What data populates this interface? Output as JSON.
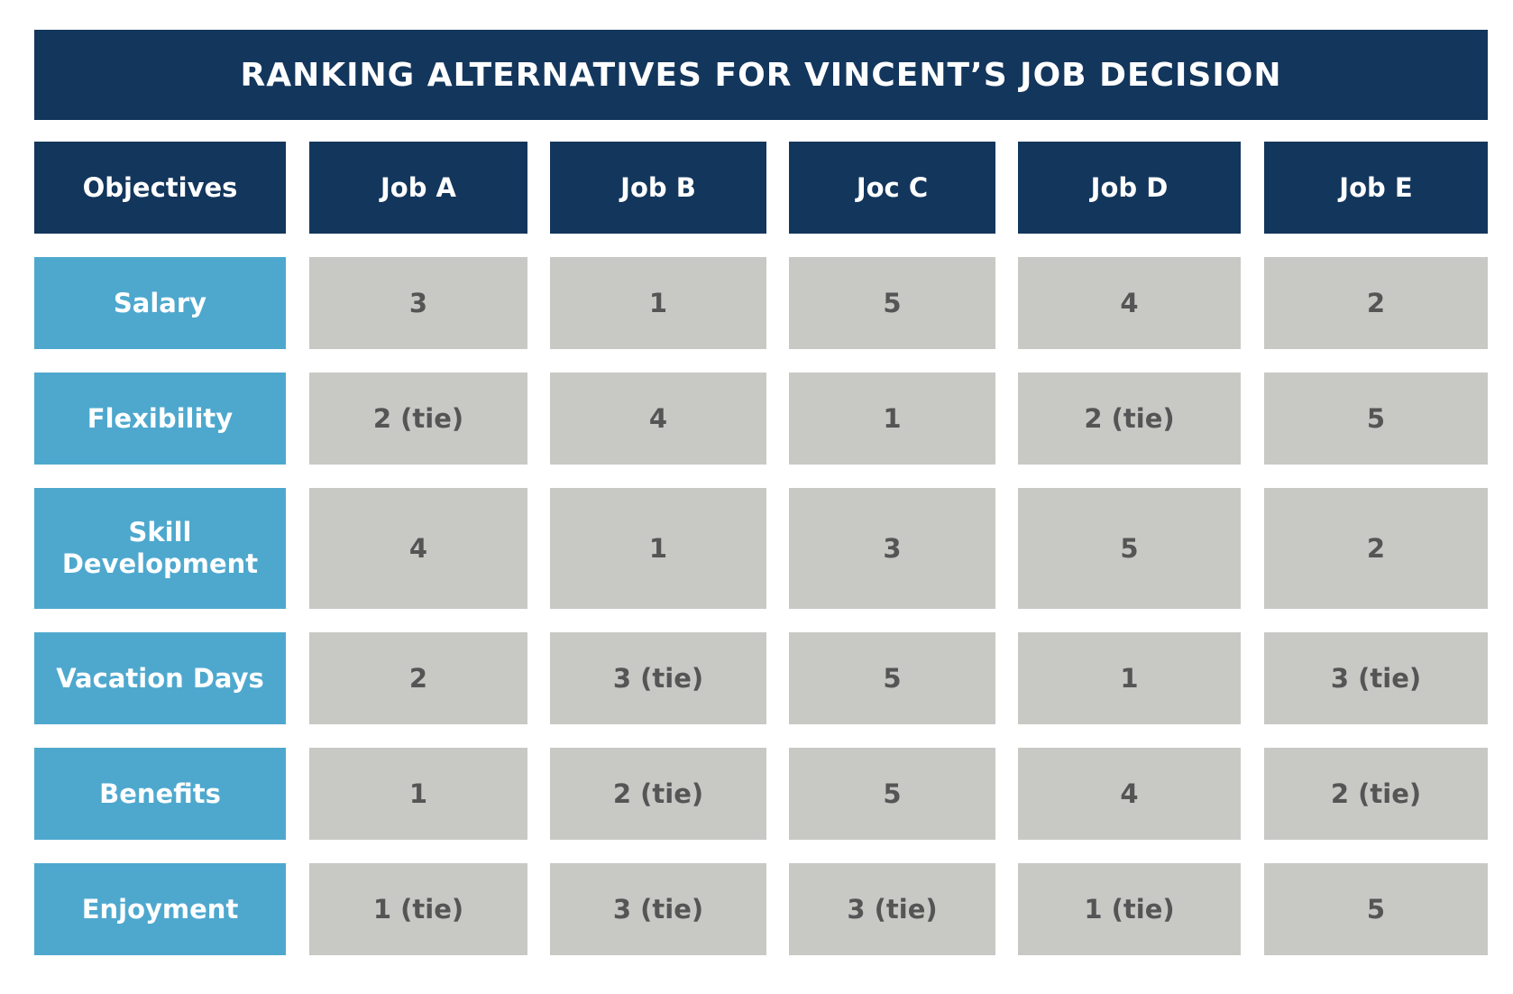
{
  "title": "RANKING ALTERNATIVES FOR VINCENT’S JOB DECISION",
  "chart_data": {
    "type": "table",
    "title": "RANKING ALTERNATIVES FOR VINCENT’S JOB DECISION",
    "columns": [
      "Objectives",
      "Job A",
      "Job B",
      "Joc C",
      "Job D",
      "Job E"
    ],
    "rows": [
      {
        "objective": "Salary",
        "values": [
          "3",
          "1",
          "5",
          "4",
          "2"
        ]
      },
      {
        "objective": "Flexibility",
        "values": [
          "2 (tie)",
          "4",
          "1",
          "2 (tie)",
          "5"
        ]
      },
      {
        "objective": "Skill Development",
        "values": [
          "4",
          "1",
          "3",
          "5",
          "2"
        ]
      },
      {
        "objective": "Vacation Days",
        "values": [
          "2",
          "3 (tie)",
          "5",
          "1",
          "3 (tie)"
        ]
      },
      {
        "objective": "Benefits",
        "values": [
          "1",
          "2 (tie)",
          "5",
          "4",
          "2 (tie)"
        ]
      },
      {
        "objective": "Enjoyment",
        "values": [
          "1 (tie)",
          "3 (tie)",
          "3 (tie)",
          "1 (tie)",
          "5"
        ]
      }
    ]
  },
  "colors": {
    "header": "#13365c",
    "objective": "#4ea8ce",
    "value_cell": "#c8c8c5",
    "value_text": "#555555"
  }
}
